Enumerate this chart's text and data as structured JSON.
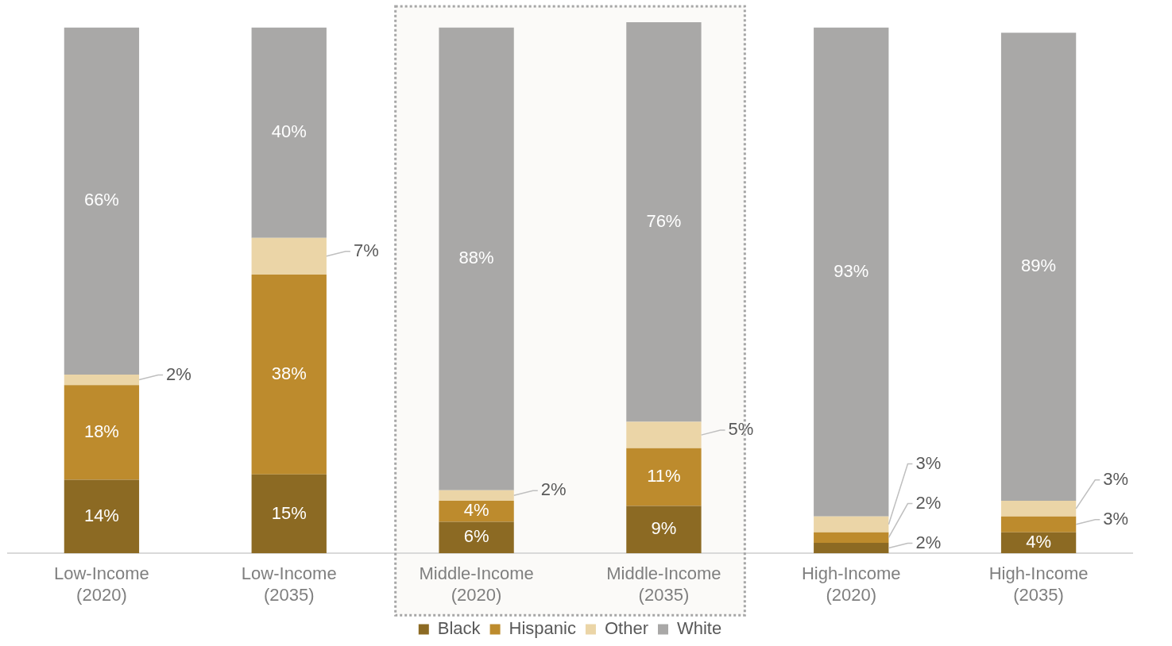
{
  "chart_data": {
    "type": "bar",
    "stacked": true,
    "categories": [
      "Low-Income (2020)",
      "Low-Income (2035)",
      "Middle-Income (2020)",
      "Middle-Income (2035)",
      "High-Income (2020)",
      "High-Income (2035)"
    ],
    "series": [
      {
        "name": "Black",
        "color": "#8c6a23",
        "values": [
          14,
          15,
          6,
          9,
          2,
          4
        ],
        "value_labels": [
          "14%",
          "15%",
          "6%",
          "9%",
          "2%",
          "4%"
        ]
      },
      {
        "name": "Hispanic",
        "color": "#bd8b2d",
        "values": [
          18,
          38,
          4,
          11,
          2,
          3
        ],
        "value_labels": [
          "18%",
          "38%",
          "4%",
          "11%",
          "2%",
          "3%"
        ]
      },
      {
        "name": "Other",
        "color": "#ebd5a7",
        "values": [
          2,
          7,
          2,
          5,
          3,
          3
        ],
        "value_labels": [
          "2%",
          "7%",
          "2%",
          "5%",
          "3%",
          "3%"
        ]
      },
      {
        "name": "White",
        "color": "#a9a8a7",
        "values": [
          66,
          40,
          88,
          76,
          93,
          89
        ],
        "value_labels": [
          "66%",
          "40%",
          "88%",
          "76%",
          "93%",
          "89%"
        ]
      }
    ],
    "bands": [
      {
        "axis": "x",
        "from": "Middle-Income (2020)",
        "to": "Middle-Income (2035)",
        "color": "#fbfaf8"
      }
    ],
    "grid": false,
    "legend": "bottom"
  }
}
